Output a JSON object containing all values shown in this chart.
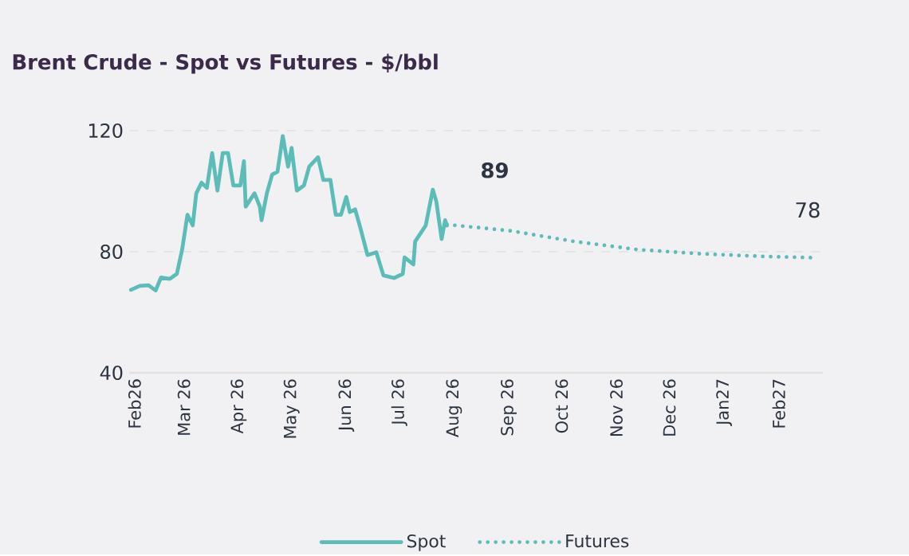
{
  "chart_data": {
    "type": "line",
    "title": "Brent Crude - Spot vs Futures - $/bbl",
    "xlim": [
      "2026-01-29",
      "2027-02-26"
    ],
    "ylim": [
      40,
      120
    ],
    "yticks": [
      40,
      80,
      120
    ],
    "xticks": [
      {
        "value": "2026-02-01",
        "label": "Feb26"
      },
      {
        "value": "2026-03-01",
        "label": "Mar 26"
      },
      {
        "value": "2026-04-01",
        "label": "Apr 26"
      },
      {
        "value": "2026-05-01",
        "label": "May 26"
      },
      {
        "value": "2026-06-01",
        "label": "Jun 26"
      },
      {
        "value": "2026-07-01",
        "label": "Jul 26"
      },
      {
        "value": "2026-08-01",
        "label": "Aug 26"
      },
      {
        "value": "2026-09-01",
        "label": "Sep 26"
      },
      {
        "value": "2026-10-01",
        "label": "Oct 26"
      },
      {
        "value": "2026-11-01",
        "label": "Nov 26"
      },
      {
        "value": "2026-12-01",
        "label": "Dec 26"
      },
      {
        "value": "2027-01-01",
        "label": "Jan27"
      },
      {
        "value": "2027-02-01",
        "label": "Feb27"
      }
    ],
    "grid": "y",
    "legend": "bottom",
    "series": [
      {
        "name": "Spot",
        "color": "#5bbcb8",
        "line_style": "solid",
        "x": [
          "2026-01-30",
          "2026-02-04",
          "2026-02-09",
          "2026-02-13",
          "2026-02-16",
          "2026-02-21",
          "2026-02-25",
          "2026-02-28",
          "2026-03-03",
          "2026-03-06",
          "2026-03-08",
          "2026-03-11",
          "2026-03-14",
          "2026-03-17",
          "2026-03-20",
          "2026-03-23",
          "2026-03-26",
          "2026-03-29",
          "2026-04-02",
          "2026-04-04",
          "2026-04-05",
          "2026-04-10",
          "2026-04-13",
          "2026-04-14",
          "2026-04-17",
          "2026-04-20",
          "2026-04-23",
          "2026-04-26",
          "2026-04-29",
          "2026-05-01",
          "2026-05-04",
          "2026-05-08",
          "2026-05-11",
          "2026-05-16",
          "2026-05-19",
          "2026-05-23",
          "2026-05-26",
          "2026-05-29",
          "2026-06-01",
          "2026-06-03",
          "2026-06-06",
          "2026-06-09",
          "2026-06-13",
          "2026-06-18",
          "2026-06-22",
          "2026-06-28",
          "2026-07-03",
          "2026-07-04",
          "2026-07-09",
          "2026-07-10",
          "2026-07-13",
          "2026-07-16",
          "2026-07-20",
          "2026-07-22",
          "2026-07-25",
          "2026-07-27",
          "2026-07-28"
        ],
        "values": [
          67.4,
          68.7,
          68.9,
          67.2,
          71.5,
          71.0,
          72.7,
          80.7,
          92.2,
          88.7,
          99.3,
          102.8,
          101.1,
          112.6,
          100.2,
          112.6,
          112.6,
          101.9,
          101.9,
          109.9,
          94.9,
          99.3,
          94.9,
          90.4,
          99.3,
          105.5,
          106.4,
          118.2,
          108.1,
          114.3,
          100.2,
          101.9,
          108.1,
          111.2,
          103.7,
          103.7,
          92.2,
          92.2,
          98.1,
          93.1,
          94.0,
          87.8,
          78.9,
          79.8,
          72.2,
          71.3,
          72.7,
          78.1,
          75.8,
          83.4,
          86.0,
          88.7,
          100.5,
          96.6,
          84.2,
          90.4,
          88.7
        ]
      },
      {
        "name": "Futures",
        "color": "#5bbcb8",
        "line_style": "dotted",
        "x": [
          "2026-07-28",
          "2026-09-02",
          "2026-10-08",
          "2026-11-13",
          "2026-12-19",
          "2027-01-25",
          "2027-02-21"
        ],
        "values": [
          89,
          86.9,
          83.4,
          80.7,
          79.3,
          78.4,
          78
        ]
      }
    ],
    "annotations": [
      {
        "text": "89",
        "x": "2026-07-28",
        "y": 89
      },
      {
        "text": "78",
        "x": "2027-02-21",
        "y": 78
      }
    ]
  }
}
